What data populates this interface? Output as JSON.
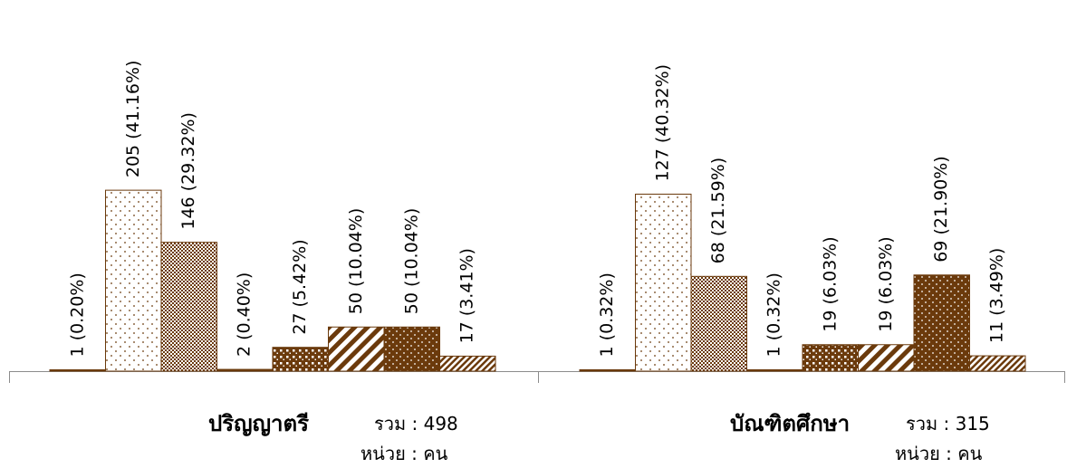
{
  "colors": {
    "dark": "#6b3a0c",
    "light": "#ffffff",
    "axis": "#8c8c8c"
  },
  "chart_data": [
    {
      "type": "bar",
      "group_name": "ปริญญาตรี",
      "total_text": "รวม : 498",
      "unit_text": "หน่วย : คน",
      "ylim": [
        0,
        240
      ],
      "grid": false,
      "values": [
        1,
        205,
        146,
        2,
        27,
        50,
        50,
        17
      ],
      "labels": [
        "1 (0.20%)",
        "205 (41.16%)",
        "146 (29.32%)",
        "2 (0.40%)",
        "27 (5.42%)",
        "50 (10.04%)",
        "50 (10.04%)",
        "17 (3.41%)"
      ],
      "patterns": [
        "solid",
        "sparse-dots",
        "checker",
        "solid",
        "dots-dense",
        "diag-stripes",
        "dark-dots",
        "diag-fine"
      ]
    },
    {
      "type": "bar",
      "group_name": "บัณฑิตศึกษา",
      "total_text": "รวม : 315",
      "unit_text": "หน่วย : คน",
      "ylim": [
        0,
        152
      ],
      "grid": false,
      "values": [
        1,
        127,
        68,
        1,
        19,
        19,
        69,
        11
      ],
      "labels": [
        "1 (0.32%)",
        "127 (40.32%)",
        "68 (21.59%)",
        "1 (0.32%)",
        "19 (6.03%)",
        "19 (6.03%)",
        "69 (21.90%)",
        "11 (3.49%)"
      ],
      "patterns": [
        "solid",
        "sparse-dots",
        "checker",
        "solid",
        "dots-dense",
        "diag-stripes",
        "dark-dots",
        "diag-fine"
      ]
    }
  ]
}
